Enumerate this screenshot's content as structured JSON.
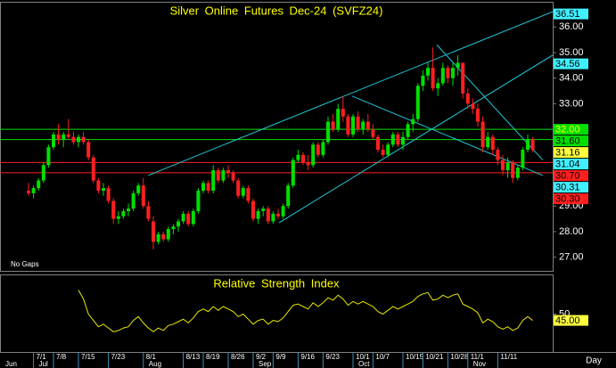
{
  "chart_data": [
    {
      "type": "candlestick",
      "title": "Silver Online Futures Dec-24  (SVFZ24)",
      "note": "No Gaps",
      "period_label": "Day",
      "up_color": "#00e000",
      "down_color": "#ff2020",
      "ylim": [
        26.5,
        36.95
      ],
      "yticks": [
        {
          "value": 27,
          "label": "27.00"
        },
        {
          "value": 28,
          "label": "28.00"
        },
        {
          "value": 29,
          "label": "29.00"
        },
        {
          "value": 33,
          "label": "33.00"
        },
        {
          "value": 34,
          "label": "34.00"
        },
        {
          "value": 35,
          "label": "35.00"
        },
        {
          "value": 36,
          "label": "36.00"
        }
      ],
      "categories": [
        null,
        "7/1",
        null,
        null,
        null,
        "7/8",
        null,
        null,
        null,
        null,
        "7/15",
        null,
        null,
        null,
        null,
        null,
        "7/23",
        null,
        null,
        null,
        null,
        null,
        null,
        "8/1",
        null,
        null,
        null,
        null,
        null,
        null,
        null,
        "8/13",
        null,
        null,
        null,
        "8/19",
        null,
        null,
        null,
        null,
        "8/26",
        null,
        null,
        null,
        null,
        "9/2",
        null,
        null,
        null,
        "9/9",
        null,
        null,
        null,
        null,
        "9/16",
        null,
        null,
        null,
        null,
        "9/23",
        null,
        null,
        null,
        null,
        null,
        "10/1",
        null,
        null,
        null,
        "10/7",
        null,
        null,
        null,
        null,
        null,
        "10/15",
        null,
        null,
        null,
        "10/21",
        null,
        null,
        null,
        null,
        "10/28",
        null,
        null,
        null,
        "11/1",
        null,
        null,
        null,
        null,
        null,
        "11/11",
        null,
        null,
        null,
        null,
        null,
        null,
        null
      ],
      "months": [
        "Jun",
        "Jul",
        null,
        null,
        null,
        null,
        null,
        null,
        null,
        null,
        null,
        null,
        null,
        null,
        null,
        null,
        null,
        null,
        null,
        null,
        null,
        null,
        null,
        "Aug",
        null,
        null,
        null,
        null,
        null,
        null,
        null,
        null,
        null,
        null,
        null,
        null,
        null,
        null,
        null,
        null,
        null,
        null,
        null,
        null,
        null,
        "Sep",
        null,
        null,
        null,
        null,
        null,
        null,
        null,
        null,
        null,
        null,
        null,
        null,
        null,
        null,
        null,
        null,
        null,
        null,
        null,
        "Oct",
        null,
        null,
        null,
        null,
        null,
        null,
        null,
        null,
        null,
        null,
        null,
        null,
        null,
        null,
        null,
        null,
        null,
        null,
        null,
        null,
        null,
        null,
        "Nov",
        null,
        null,
        null,
        null,
        null,
        null,
        null,
        null,
        null,
        null,
        null,
        null,
        null
      ],
      "ohlc": [
        [
          29.6,
          29.9,
          29.4,
          29.5
        ],
        [
          29.5,
          29.8,
          29.3,
          29.7
        ],
        [
          29.7,
          30.1,
          29.6,
          30.0
        ],
        [
          30.0,
          30.7,
          29.9,
          30.6
        ],
        [
          30.6,
          31.4,
          30.5,
          31.3
        ],
        [
          31.3,
          31.9,
          31.2,
          31.8
        ],
        [
          31.8,
          32.2,
          31.4,
          31.6
        ],
        [
          31.6,
          31.9,
          31.3,
          31.8
        ],
        [
          31.8,
          32.4,
          31.6,
          31.7
        ],
        [
          31.7,
          31.9,
          31.4,
          31.5
        ],
        [
          31.5,
          31.8,
          31.3,
          31.7
        ],
        [
          31.7,
          31.9,
          31.4,
          31.5
        ],
        [
          31.5,
          31.6,
          30.8,
          30.9
        ],
        [
          30.9,
          31.0,
          29.9,
          30.0
        ],
        [
          30.0,
          30.1,
          29.5,
          29.6
        ],
        [
          29.6,
          29.9,
          29.4,
          29.7
        ],
        [
          29.7,
          29.8,
          29.1,
          29.2
        ],
        [
          29.2,
          29.3,
          28.3,
          28.5
        ],
        [
          28.5,
          28.8,
          28.3,
          28.6
        ],
        [
          28.6,
          28.9,
          28.5,
          28.8
        ],
        [
          28.8,
          29.1,
          28.6,
          28.9
        ],
        [
          28.9,
          29.6,
          28.8,
          29.5
        ],
        [
          29.5,
          29.9,
          29.4,
          29.8
        ],
        [
          29.8,
          30.1,
          28.9,
          29.0
        ],
        [
          29.0,
          29.2,
          28.4,
          28.5
        ],
        [
          28.4,
          28.6,
          27.3,
          27.6
        ],
        [
          27.6,
          28.0,
          27.5,
          27.9
        ],
        [
          27.9,
          28.0,
          27.6,
          27.7
        ],
        [
          27.7,
          28.2,
          27.6,
          28.1
        ],
        [
          28.1,
          28.3,
          27.9,
          28.2
        ],
        [
          28.2,
          28.5,
          28.0,
          28.4
        ],
        [
          28.4,
          28.8,
          28.3,
          28.7
        ],
        [
          28.7,
          28.8,
          28.2,
          28.3
        ],
        [
          28.3,
          28.9,
          28.2,
          28.8
        ],
        [
          28.8,
          29.7,
          28.7,
          29.6
        ],
        [
          29.6,
          30.0,
          29.5,
          29.9
        ],
        [
          29.9,
          30.0,
          29.5,
          29.6
        ],
        [
          29.6,
          30.6,
          29.5,
          30.4
        ],
        [
          30.4,
          30.5,
          29.9,
          30.0
        ],
        [
          30.0,
          30.5,
          29.9,
          30.4
        ],
        [
          30.4,
          30.6,
          30.1,
          30.3
        ],
        [
          30.3,
          30.4,
          29.9,
          30.0
        ],
        [
          30.0,
          30.1,
          29.3,
          29.4
        ],
        [
          29.4,
          29.8,
          29.3,
          29.7
        ],
        [
          29.7,
          29.8,
          29.1,
          29.2
        ],
        [
          29.2,
          29.3,
          28.4,
          28.5
        ],
        [
          28.5,
          28.9,
          28.3,
          28.8
        ],
        [
          28.8,
          29.0,
          28.6,
          28.9
        ],
        [
          28.9,
          29.0,
          28.3,
          28.4
        ],
        [
          28.4,
          28.8,
          28.3,
          28.7
        ],
        [
          28.7,
          28.9,
          28.5,
          28.6
        ],
        [
          28.6,
          29.1,
          28.5,
          29.0
        ],
        [
          29.0,
          29.9,
          28.9,
          29.8
        ],
        [
          29.8,
          30.9,
          29.7,
          30.8
        ],
        [
          30.8,
          31.2,
          30.7,
          31.0
        ],
        [
          31.0,
          31.1,
          30.6,
          30.7
        ],
        [
          30.7,
          31.0,
          30.4,
          30.6
        ],
        [
          30.6,
          31.5,
          30.5,
          31.4
        ],
        [
          31.4,
          31.5,
          30.9,
          31.0
        ],
        [
          31.0,
          31.6,
          30.9,
          31.5
        ],
        [
          31.5,
          32.5,
          31.4,
          32.3
        ],
        [
          32.3,
          32.6,
          31.9,
          32.0
        ],
        [
          32.0,
          33.0,
          31.9,
          32.8
        ],
        [
          32.8,
          33.3,
          32.3,
          32.5
        ],
        [
          32.5,
          32.6,
          31.7,
          31.8
        ],
        [
          31.8,
          32.6,
          31.7,
          32.5
        ],
        [
          32.5,
          32.7,
          31.9,
          32.0
        ],
        [
          32.0,
          32.4,
          31.8,
          32.3
        ],
        [
          32.3,
          32.6,
          31.9,
          32.0
        ],
        [
          32.0,
          32.2,
          31.6,
          31.7
        ],
        [
          31.7,
          31.8,
          31.1,
          31.2
        ],
        [
          31.2,
          31.4,
          30.9,
          31.0
        ],
        [
          31.0,
          31.5,
          30.9,
          31.4
        ],
        [
          31.4,
          31.9,
          31.3,
          31.8
        ],
        [
          31.8,
          31.9,
          31.3,
          31.4
        ],
        [
          31.4,
          31.9,
          31.2,
          31.7
        ],
        [
          31.7,
          32.3,
          31.6,
          32.2
        ],
        [
          32.2,
          32.6,
          31.9,
          32.4
        ],
        [
          32.4,
          33.8,
          32.3,
          33.7
        ],
        [
          33.7,
          34.3,
          33.5,
          34.1
        ],
        [
          34.1,
          34.6,
          33.9,
          34.4
        ],
        [
          34.4,
          35.2,
          33.5,
          33.6
        ],
        [
          33.6,
          34.0,
          33.3,
          33.8
        ],
        [
          33.8,
          34.6,
          33.7,
          34.4
        ],
        [
          34.4,
          34.5,
          33.8,
          34.0
        ],
        [
          34.0,
          34.6,
          33.7,
          34.4
        ],
        [
          34.4,
          34.9,
          34.1,
          34.6
        ],
        [
          34.6,
          34.6,
          33.2,
          33.4
        ],
        [
          33.4,
          33.6,
          32.8,
          33.0
        ],
        [
          33.0,
          33.2,
          32.6,
          32.8
        ],
        [
          32.8,
          33.0,
          32.1,
          32.3
        ],
        [
          32.3,
          32.5,
          31.1,
          31.3
        ],
        [
          31.3,
          31.9,
          31.2,
          31.7
        ],
        [
          31.7,
          31.8,
          31.0,
          31.2
        ],
        [
          31.2,
          31.3,
          30.6,
          30.8
        ],
        [
          30.8,
          31.0,
          30.2,
          30.4
        ],
        [
          30.4,
          30.9,
          30.1,
          30.7
        ],
        [
          30.7,
          30.8,
          29.9,
          30.1
        ],
        [
          30.1,
          30.6,
          30.0,
          30.5
        ],
        [
          30.5,
          31.3,
          30.4,
          31.2
        ],
        [
          31.2,
          31.8,
          31.1,
          31.6
        ],
        [
          31.6,
          31.7,
          31.1,
          31.2
        ]
      ],
      "horizontal_lines": {
        "values": [
          32.0,
          31.6,
          30.7,
          30.3
        ],
        "colors": [
          "#00e000",
          "#00e000",
          "#ff2020",
          "#ff2020"
        ]
      },
      "trendlines": [
        {
          "x": [
            24,
            105
          ],
          "y": [
            30.2,
            36.6
          ]
        },
        {
          "x": [
            50.2,
            105
          ],
          "y": [
            28.35,
            34.9
          ]
        },
        {
          "x": [
            64.8,
            103
          ],
          "y": [
            33.3,
            30.2
          ]
        },
        {
          "x": [
            81.8,
            103
          ],
          "y": [
            35.3,
            30.8
          ]
        }
      ],
      "trendline_color": "#20c8d8",
      "price_markers": {
        "values": [
          36.51,
          34.56,
          32.0,
          31.6,
          31.16,
          31.04,
          30.7,
          30.31,
          30.3
        ],
        "value_labels": [
          "36.51",
          "34.56",
          "32.00",
          "31.60",
          "31.16",
          "31.04",
          "30.70",
          "30.31",
          "30.30"
        ],
        "colors": [
          "#40f0ff",
          "#40f0ff",
          "#00e000",
          "#00e000",
          "#ffff40",
          "#40f0ff",
          "#ff2020",
          "#40f0ff",
          "#ff2020"
        ],
        "text_colors": [
          "#000000",
          "#000000",
          "#ffff00",
          "#000000",
          "#000000",
          "#000000",
          "#000000",
          "#000000",
          "#000000"
        ]
      }
    },
    {
      "type": "line",
      "title": "Relative Strength Index",
      "color": "#e8e800",
      "ylim": [
        20,
        80
      ],
      "yticks": [
        50
      ],
      "values": [
        null,
        null,
        null,
        null,
        null,
        null,
        null,
        null,
        null,
        null,
        69,
        62,
        50,
        45,
        40,
        42,
        39,
        36,
        37,
        39,
        40,
        45,
        48,
        43,
        39,
        36,
        39,
        37,
        41,
        42,
        44,
        46,
        43,
        47,
        52,
        54,
        52,
        56,
        53,
        56,
        54,
        52,
        48,
        50,
        46,
        42,
        45,
        46,
        42,
        45,
        44,
        47,
        52,
        57,
        58,
        56,
        54,
        59,
        56,
        59,
        63,
        61,
        65,
        62,
        57,
        60,
        58,
        60,
        58,
        56,
        52,
        50,
        53,
        56,
        54,
        56,
        58,
        60,
        64,
        66,
        67,
        61,
        62,
        65,
        63,
        65,
        66,
        58,
        56,
        54,
        51,
        43,
        46,
        44,
        40,
        38,
        40,
        37,
        39,
        45,
        48,
        45
      ],
      "marker": {
        "value": 45,
        "label": "45.00",
        "color": "#ffff40"
      }
    }
  ]
}
